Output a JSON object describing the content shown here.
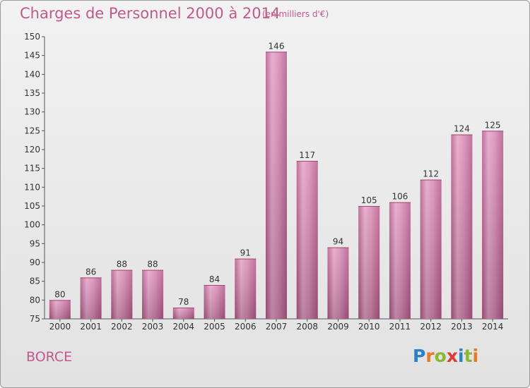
{
  "chart_data": {
    "type": "bar",
    "title": "Charges de Personnel 2000 à 2014",
    "subtitle": "(en milliers d'€)",
    "categories": [
      "2000",
      "2001",
      "2002",
      "2003",
      "2004",
      "2005",
      "2006",
      "2007",
      "2008",
      "2009",
      "2010",
      "2011",
      "2012",
      "2013",
      "2014"
    ],
    "values": [
      80,
      86,
      88,
      88,
      78,
      84,
      91,
      146,
      117,
      94,
      105,
      106,
      112,
      124,
      125
    ],
    "ylim": [
      75,
      150
    ],
    "yticks": [
      75,
      80,
      85,
      90,
      95,
      100,
      105,
      110,
      115,
      120,
      125,
      130,
      135,
      140,
      145,
      150
    ],
    "grid": false,
    "xlabel": "",
    "ylabel": "",
    "bar_color": "#c9679c"
  },
  "commune": "BORCE",
  "logo": {
    "letters": [
      "P",
      "r",
      "o",
      "x",
      "i",
      "t",
      "i"
    ],
    "colors": [
      "#2f7fc1",
      "#e8782a",
      "#8ab833",
      "#e23a3a",
      "#2f7fc1",
      "#8ab833",
      "#e8782a"
    ]
  }
}
